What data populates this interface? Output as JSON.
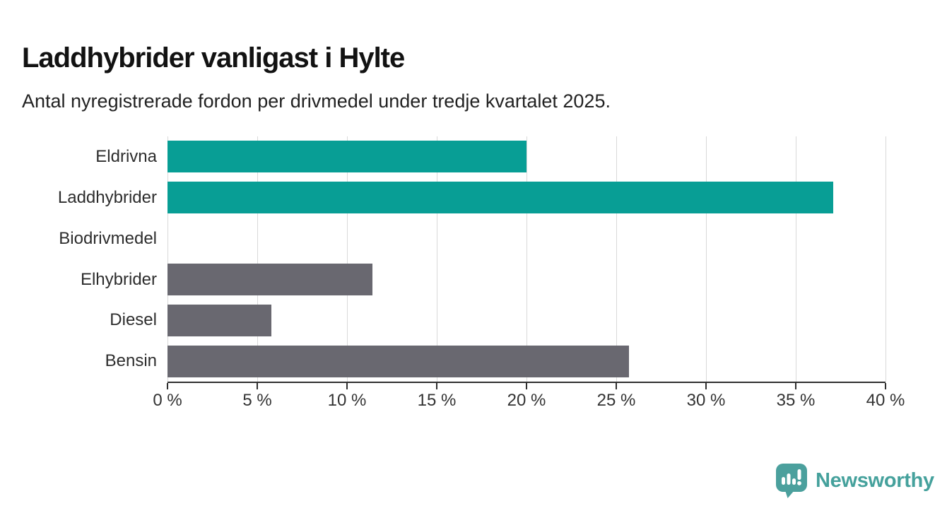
{
  "header": {
    "title": "Laddhybrider vanligast i Hylte",
    "subtitle": "Antal nyregistrerade fordon per drivmedel under tredje kvartalet 2025."
  },
  "chart_data": {
    "type": "bar",
    "orientation": "horizontal",
    "title": "Laddhybrider vanligast i Hylte",
    "subtitle": "Antal nyregistrerade fordon per drivmedel under tredje kvartalet 2025.",
    "categories": [
      "Eldrivna",
      "Laddhybrider",
      "Biodrivmedel",
      "Elhybrider",
      "Diesel",
      "Bensin"
    ],
    "values": [
      20.0,
      37.1,
      0,
      11.4,
      5.8,
      25.7
    ],
    "unit": "%",
    "bar_colors": [
      "#089e95",
      "#089e95",
      "#696870",
      "#696870",
      "#696870",
      "#696870"
    ],
    "highlight_color": "#089e95",
    "default_color": "#696870",
    "xlabel": "",
    "ylabel": "",
    "xlim": [
      0,
      40
    ],
    "x_ticks": [
      0,
      5,
      10,
      15,
      20,
      25,
      30,
      35,
      40
    ],
    "x_tick_labels": [
      "0 %",
      "5 %",
      "10 %",
      "15 %",
      "20 %",
      "25 %",
      "30 %",
      "35 %",
      "40 %"
    ],
    "grid": "vertical",
    "gridline_color": "#d9d9d9",
    "axis_color": "#2f2f2f",
    "legend": "none"
  },
  "footer": {
    "brand": "Newsworthy",
    "brand_color": "#45a19c",
    "logo_icon": "newsworthy-speech-bubble-chart-icon"
  }
}
